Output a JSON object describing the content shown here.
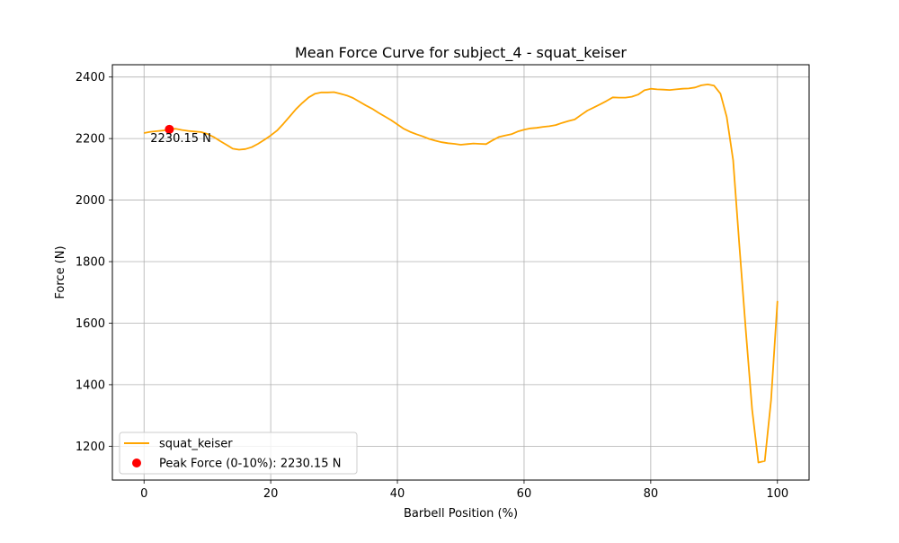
{
  "chart_data": {
    "type": "line",
    "title": "Mean Force Curve for subject_4 - squat_keiser",
    "xlabel": "Barbell Position (%)",
    "ylabel": "Force (N)",
    "xlim": [
      -5,
      105
    ],
    "ylim": [
      1090,
      2440
    ],
    "xticks": [
      0,
      20,
      40,
      60,
      80,
      100
    ],
    "yticks": [
      1200,
      1400,
      1600,
      1800,
      2000,
      2200,
      2400
    ],
    "grid": true,
    "legend_position": "lower-left",
    "series": [
      {
        "name": "squat_keiser",
        "color": "#ffa500",
        "x": [
          0,
          1,
          2,
          3,
          4,
          5,
          6,
          7,
          8,
          9,
          10,
          11,
          12,
          13,
          14,
          15,
          16,
          17,
          18,
          19,
          20,
          21,
          22,
          23,
          24,
          25,
          26,
          27,
          28,
          29,
          30,
          31,
          32,
          33,
          34,
          35,
          36,
          37,
          38,
          39,
          40,
          41,
          42,
          43,
          44,
          45,
          46,
          47,
          48,
          49,
          50,
          51,
          52,
          53,
          54,
          55,
          56,
          57,
          58,
          59,
          60,
          61,
          62,
          63,
          64,
          65,
          66,
          67,
          68,
          69,
          70,
          71,
          72,
          73,
          74,
          75,
          76,
          77,
          78,
          79,
          80,
          81,
          82,
          83,
          84,
          85,
          86,
          87,
          88,
          89,
          90,
          91,
          92,
          93,
          94,
          95,
          96,
          97,
          98,
          99,
          100
        ],
        "y": [
          2218,
          2222,
          2224,
          2226,
          2230,
          2232,
          2228,
          2225,
          2223,
          2221,
          2215,
          2205,
          2192,
          2180,
          2167,
          2164,
          2166,
          2172,
          2183,
          2196,
          2210,
          2226,
          2248,
          2272,
          2296,
          2316,
          2334,
          2346,
          2350,
          2350,
          2351,
          2346,
          2340,
          2332,
          2320,
          2308,
          2297,
          2284,
          2272,
          2260,
          2246,
          2232,
          2222,
          2214,
          2207,
          2199,
          2193,
          2188,
          2185,
          2183,
          2180,
          2182,
          2184,
          2183,
          2182,
          2194,
          2205,
          2210,
          2214,
          2223,
          2229,
          2233,
          2235,
          2238,
          2240,
          2244,
          2251,
          2257,
          2262,
          2277,
          2291,
          2301,
          2311,
          2322,
          2334,
          2333,
          2333,
          2336,
          2343,
          2357,
          2362,
          2360,
          2359,
          2358,
          2360,
          2362,
          2363,
          2366,
          2373,
          2376,
          2372,
          2346,
          2270,
          2130,
          1850,
          1580,
          1320,
          1147,
          1152,
          1350,
          1672
        ]
      }
    ],
    "annotations": [
      {
        "label": "Peak Force (0-10%): 2230.15 N",
        "text": "2230.15 N",
        "x": 4,
        "y": 2230.15,
        "color": "#ff0000"
      }
    ]
  }
}
